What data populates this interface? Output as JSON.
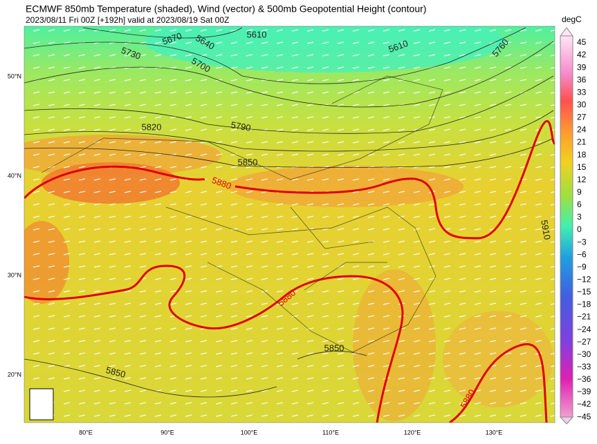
{
  "header": {
    "title": "ECMWF 850mb Temperature (shaded), Wind (vector) & 500mb Geopotential Height (contour)",
    "subtitle": "2023/08/11 Fri 00Z [+192h] valid at 2023/08/19 Sat 00Z"
  },
  "colorbar": {
    "unit": "degC",
    "labels": [
      "45",
      "42",
      "39",
      "36",
      "33",
      "30",
      "27",
      "24",
      "21",
      "18",
      "15",
      "12",
      "9",
      "6",
      "3",
      "0",
      "−3",
      "−6",
      "−9",
      "−12",
      "−15",
      "−18",
      "−21",
      "−24",
      "−27",
      "−30",
      "−33",
      "−36",
      "−39",
      "−42",
      "−45"
    ]
  },
  "axes": {
    "longitude": [
      "80°E",
      "90°E",
      "100°E",
      "110°E",
      "120°E",
      "130°E"
    ],
    "latitude": [
      "50°N",
      "40°N",
      "30°N",
      "20°N"
    ]
  },
  "contour_labels": [
    "5670",
    "5640",
    "5610",
    "5610",
    "5760",
    "5730",
    "5700",
    "5820",
    "5790",
    "5850",
    "5880",
    "5880",
    "5850",
    "5850",
    "5880",
    "5910"
  ]
}
